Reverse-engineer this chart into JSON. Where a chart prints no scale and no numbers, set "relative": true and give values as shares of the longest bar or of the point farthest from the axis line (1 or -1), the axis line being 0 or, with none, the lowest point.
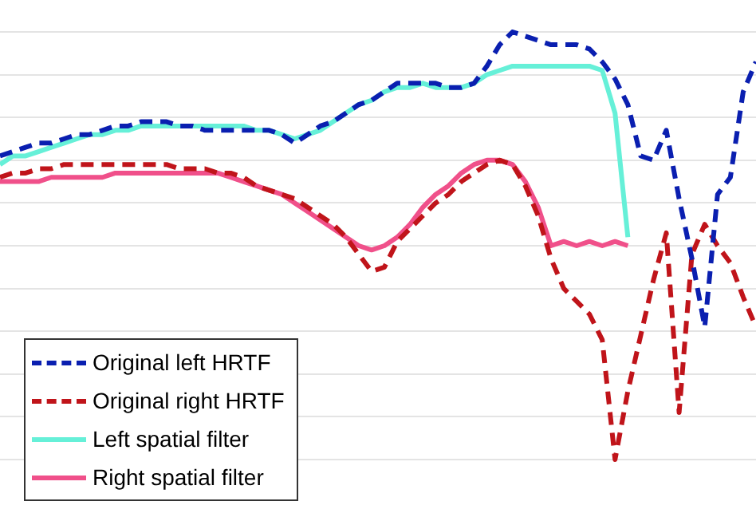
{
  "chart_data": {
    "type": "line",
    "relative": true,
    "grid": "y",
    "legend": "bottom left",
    "categories": [
      null,
      null,
      null,
      null,
      null,
      null,
      null,
      null,
      null,
      null,
      null,
      null,
      null,
      null,
      null,
      null,
      null,
      null,
      null,
      null,
      null,
      null,
      null,
      null,
      null,
      null,
      null,
      null,
      null,
      null,
      null,
      null,
      null,
      null,
      null,
      null,
      null,
      null,
      null,
      null,
      null,
      null,
      null,
      null,
      null,
      null,
      null,
      null,
      null,
      null,
      null,
      null,
      null,
      null,
      null,
      null,
      null,
      null,
      null,
      null
    ],
    "series": [
      {
        "name": "Original left HRTF",
        "color": "#0a1fb0",
        "line_style": "dashed",
        "values": [
          0.71,
          0.72,
          0.73,
          0.74,
          0.74,
          0.75,
          0.76,
          0.76,
          0.77,
          0.78,
          0.78,
          0.79,
          0.79,
          0.79,
          0.78,
          0.78,
          0.77,
          0.77,
          0.77,
          0.77,
          0.77,
          0.77,
          0.76,
          0.74,
          0.76,
          0.78,
          0.79,
          0.81,
          0.83,
          0.84,
          0.86,
          0.88,
          0.88,
          0.88,
          0.88,
          0.87,
          0.87,
          0.88,
          0.92,
          0.97,
          1.0,
          0.99,
          0.98,
          0.97,
          0.97,
          0.97,
          0.96,
          0.93,
          0.89,
          0.83,
          0.71,
          0.7,
          0.77,
          0.61,
          0.47,
          0.31,
          0.62,
          0.66,
          0.86,
          0.93
        ]
      },
      {
        "name": "Original right HRTF",
        "color": "#c0141a",
        "line_style": "dashed",
        "values": [
          0.66,
          0.67,
          0.67,
          0.68,
          0.68,
          0.69,
          0.69,
          0.69,
          0.69,
          0.69,
          0.69,
          0.69,
          0.69,
          0.69,
          0.68,
          0.68,
          0.68,
          0.67,
          0.67,
          0.66,
          0.64,
          0.63,
          0.62,
          0.61,
          0.59,
          0.57,
          0.55,
          0.52,
          0.48,
          0.44,
          0.45,
          0.51,
          0.54,
          0.57,
          0.6,
          0.62,
          0.65,
          0.67,
          0.69,
          0.7,
          0.69,
          0.64,
          0.57,
          0.47,
          0.4,
          0.37,
          0.34,
          0.28,
          0,
          0.16,
          0.29,
          0.42,
          0.53,
          0.11,
          0.48,
          0.55,
          0.5,
          0.46,
          0.38,
          0.31
        ]
      },
      {
        "name": "Left spatial filter",
        "color": "#66f0d8",
        "line_style": "solid",
        "values": [
          0.69,
          0.71,
          0.71,
          0.72,
          0.73,
          0.74,
          0.75,
          0.76,
          0.76,
          0.77,
          0.77,
          0.78,
          0.78,
          0.78,
          0.78,
          0.78,
          0.78,
          0.78,
          0.78,
          0.78,
          0.77,
          0.77,
          0.76,
          0.75,
          0.76,
          0.77,
          0.79,
          0.81,
          0.83,
          0.84,
          0.86,
          0.87,
          0.87,
          0.88,
          0.87,
          0.87,
          0.87,
          0.88,
          0.9,
          0.91,
          0.92,
          0.92,
          0.92,
          0.92,
          0.92,
          0.92,
          0.92,
          0.91,
          0.81,
          0.52,
          null,
          null,
          null,
          null,
          null,
          null,
          null,
          null,
          null,
          null
        ]
      },
      {
        "name": "Right spatial filter",
        "color": "#f0508a",
        "line_style": "solid",
        "values": [
          0.65,
          0.65,
          0.65,
          0.65,
          0.66,
          0.66,
          0.66,
          0.66,
          0.66,
          0.67,
          0.67,
          0.67,
          0.67,
          0.67,
          0.67,
          0.67,
          0.67,
          0.67,
          0.66,
          0.65,
          0.64,
          0.63,
          0.62,
          0.6,
          0.58,
          0.56,
          0.54,
          0.52,
          0.5,
          0.49,
          0.5,
          0.52,
          0.55,
          0.59,
          0.62,
          0.64,
          0.67,
          0.69,
          0.7,
          0.7,
          0.69,
          0.65,
          0.59,
          0.5,
          0.51,
          0.5,
          0.51,
          0.5,
          0.51,
          0.5,
          null,
          null,
          null,
          null,
          null,
          null,
          null,
          null,
          null,
          null
        ]
      }
    ]
  }
}
